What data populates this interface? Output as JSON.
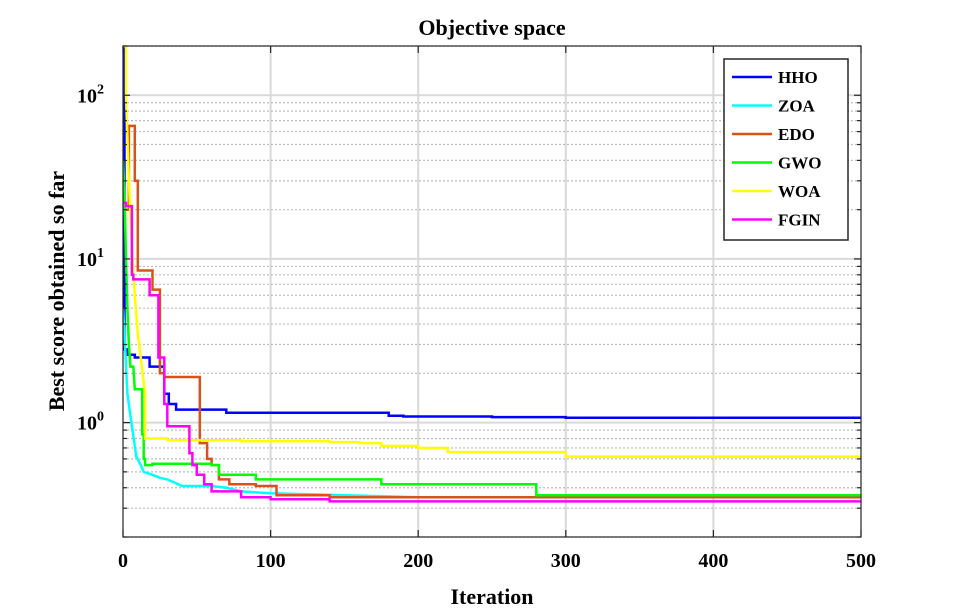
{
  "chart_data": {
    "type": "line",
    "title": "Objective space",
    "xlabel": "Iteration",
    "ylabel": "Best score obtained so far",
    "xlim": [
      0,
      500
    ],
    "ylim": [
      0.2,
      200
    ],
    "yscale": "log",
    "grid": true,
    "legend_position": "top-right",
    "x_ticks": [
      0,
      100,
      200,
      300,
      400,
      500
    ],
    "x_tick_labels": [
      "0",
      "100",
      "200",
      "300",
      "400",
      "500"
    ],
    "y_ticks": [
      1,
      10,
      100
    ],
    "y_tick_labels": [
      {
        "base": "10",
        "exp": "0"
      },
      {
        "base": "10",
        "exp": "1"
      },
      {
        "base": "10",
        "exp": "2"
      }
    ],
    "series": [
      {
        "name": "HHO",
        "color": "#0000ff",
        "x": [
          0,
          1,
          1,
          3,
          3,
          8,
          8,
          18,
          18,
          28,
          28,
          31,
          31,
          36,
          36,
          70,
          70,
          180,
          180,
          190,
          190,
          250,
          250,
          300,
          300,
          500
        ],
        "y": [
          200,
          200,
          2.8,
          2.8,
          2.6,
          2.6,
          2.5,
          2.5,
          2.2,
          2.2,
          1.5,
          1.5,
          1.3,
          1.3,
          1.2,
          1.2,
          1.15,
          1.15,
          1.1,
          1.1,
          1.09,
          1.09,
          1.08,
          1.08,
          1.07,
          1.07
        ]
      },
      {
        "name": "ZOA",
        "color": "#00ffff",
        "x": [
          0,
          1,
          3,
          6,
          8,
          9,
          12,
          14,
          20,
          25,
          30,
          35,
          40,
          60,
          70,
          80,
          100,
          150,
          200,
          500
        ],
        "y": [
          5,
          3.5,
          1.5,
          0.95,
          0.72,
          0.62,
          0.55,
          0.5,
          0.48,
          0.46,
          0.45,
          0.43,
          0.41,
          0.41,
          0.4,
          0.38,
          0.37,
          0.36,
          0.35,
          0.35
        ]
      },
      {
        "name": "EDO",
        "color": "#d95319",
        "x": [
          0,
          4,
          4,
          8,
          8,
          10,
          10,
          20,
          20,
          25,
          25,
          28,
          28,
          52,
          52,
          57,
          57,
          60,
          60,
          65,
          65,
          72,
          72,
          90,
          90,
          104,
          104,
          140,
          140,
          500
        ],
        "y": [
          20,
          20,
          65,
          65,
          30,
          30,
          8.5,
          8.5,
          6.5,
          6.5,
          2.0,
          2.0,
          1.9,
          1.9,
          0.75,
          0.75,
          0.6,
          0.6,
          0.55,
          0.55,
          0.45,
          0.45,
          0.42,
          0.42,
          0.41,
          0.41,
          0.36,
          0.36,
          0.35,
          0.35
        ]
      },
      {
        "name": "GWO",
        "color": "#00ff00",
        "x": [
          0,
          1,
          2,
          3,
          4,
          5,
          7,
          8,
          8,
          13,
          13,
          14,
          14,
          15,
          15,
          20,
          20,
          60,
          60,
          65,
          65,
          90,
          90,
          175,
          175,
          280,
          280,
          500
        ],
        "y": [
          40,
          25,
          10,
          5,
          3,
          2.2,
          2.2,
          1.6,
          1.6,
          1.6,
          0.85,
          0.85,
          0.6,
          0.6,
          0.55,
          0.55,
          0.56,
          0.56,
          0.55,
          0.55,
          0.48,
          0.48,
          0.45,
          0.45,
          0.42,
          0.42,
          0.36,
          0.36
        ]
      },
      {
        "name": "WOA",
        "color": "#ffff00",
        "x": [
          0,
          2,
          2,
          4,
          6,
          8,
          10,
          12,
          15,
          15,
          30,
          30,
          80,
          80,
          140,
          140,
          160,
          160,
          175,
          175,
          200,
          200,
          220,
          220,
          300,
          300,
          500
        ],
        "y": [
          200,
          200,
          100,
          30,
          12,
          6,
          3.5,
          2.5,
          1.5,
          0.8,
          0.8,
          0.78,
          0.78,
          0.77,
          0.77,
          0.76,
          0.76,
          0.75,
          0.75,
          0.72,
          0.72,
          0.7,
          0.7,
          0.66,
          0.66,
          0.62,
          0.62
        ]
      },
      {
        "name": "FGIN",
        "color": "#ff00ff",
        "x": [
          0,
          2,
          2,
          6,
          6,
          7,
          7,
          18,
          18,
          24,
          24,
          28,
          28,
          30,
          30,
          45,
          45,
          47,
          47,
          50,
          50,
          55,
          55,
          60,
          60,
          80,
          80,
          100,
          100,
          140,
          140,
          500
        ],
        "y": [
          22,
          22,
          21,
          21,
          8,
          8,
          7.5,
          7.5,
          6,
          6,
          2.5,
          2.5,
          1.3,
          1.3,
          0.95,
          0.95,
          0.65,
          0.65,
          0.55,
          0.55,
          0.48,
          0.48,
          0.42,
          0.42,
          0.38,
          0.38,
          0.35,
          0.35,
          0.34,
          0.34,
          0.33,
          0.33
        ]
      }
    ]
  }
}
